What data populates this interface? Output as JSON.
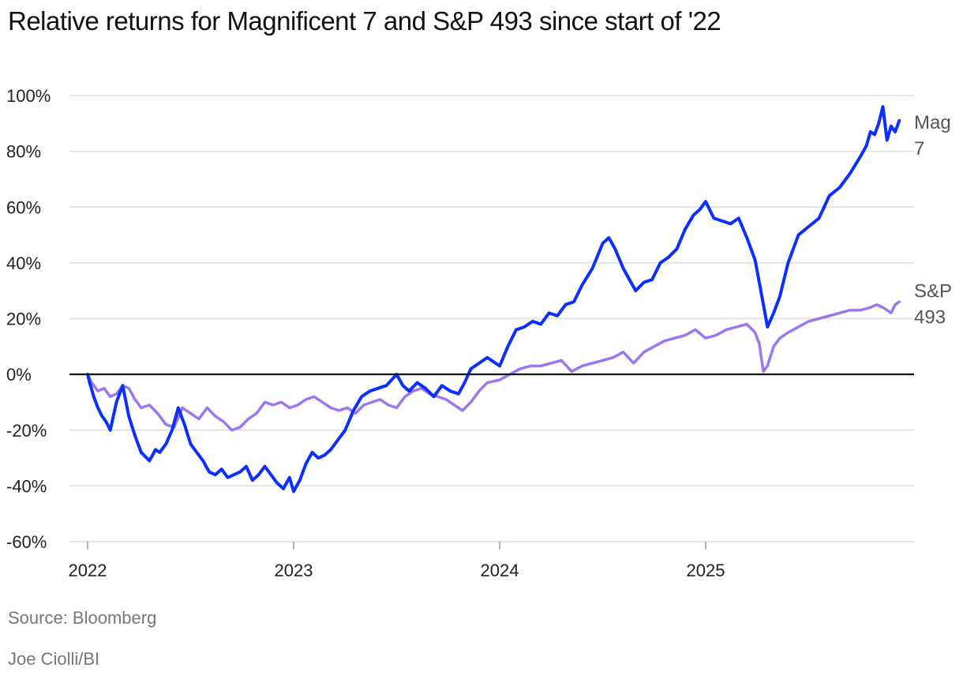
{
  "title": "Relative returns for Magnificent 7 and S&P 493 since start of '22",
  "footer": {
    "source": "Source: Bloomberg",
    "credit": "Joe Ciolli/BI"
  },
  "colors": {
    "mag7": "#0a2fff",
    "sp493": "#9b78f2",
    "grid": "#dedede",
    "zero": "#111111"
  },
  "chart_data": {
    "type": "line",
    "title": "Relative returns for Magnificent 7 and S&P 493 since start of '22",
    "xlabel": "",
    "ylabel": "",
    "xlim": [
      2022.0,
      2026.0
    ],
    "ylim": [
      -60,
      100
    ],
    "yticks": [
      100,
      80,
      60,
      40,
      20,
      0,
      -20,
      -40,
      -60
    ],
    "ytick_labels": [
      "100%",
      "80%",
      "60%",
      "40%",
      "20%",
      "0%",
      "-20%",
      "-40%",
      "-60%"
    ],
    "xticks": [
      2022,
      2023,
      2024,
      2025
    ],
    "xtick_labels": [
      "2022",
      "2023",
      "2024",
      "2025"
    ],
    "series": [
      {
        "name": "Mag 7",
        "label_lines": [
          "Mag",
          "7"
        ],
        "color": "#0a2fff",
        "x": [
          2022.0,
          2022.01,
          2022.03,
          2022.05,
          2022.07,
          2022.09,
          2022.11,
          2022.14,
          2022.17,
          2022.2,
          2022.23,
          2022.26,
          2022.3,
          2022.33,
          2022.35,
          2022.38,
          2022.41,
          2022.44,
          2022.47,
          2022.5,
          2022.53,
          2022.56,
          2022.59,
          2022.62,
          2022.65,
          2022.68,
          2022.71,
          2022.74,
          2022.77,
          2022.8,
          2022.83,
          2022.86,
          2022.89,
          2022.92,
          2022.95,
          2022.98,
          2023.0,
          2023.03,
          2023.06,
          2023.09,
          2023.12,
          2023.15,
          2023.18,
          2023.21,
          2023.25,
          2023.29,
          2023.33,
          2023.37,
          2023.41,
          2023.45,
          2023.5,
          2023.53,
          2023.56,
          2023.6,
          2023.64,
          2023.68,
          2023.72,
          2023.76,
          2023.8,
          2023.83,
          2023.86,
          2023.9,
          2023.94,
          2024.0,
          2024.04,
          2024.08,
          2024.12,
          2024.16,
          2024.2,
          2024.24,
          2024.28,
          2024.32,
          2024.36,
          2024.4,
          2024.45,
          2024.5,
          2024.53,
          2024.56,
          2024.6,
          2024.63,
          2024.66,
          2024.7,
          2024.74,
          2024.78,
          2024.82,
          2024.86,
          2024.9,
          2024.94,
          2024.97,
          2025.0,
          2025.04,
          2025.08,
          2025.12,
          2025.16,
          2025.2,
          2025.24,
          2025.26,
          2025.28,
          2025.3,
          2025.33,
          2025.36,
          2025.4,
          2025.45,
          2025.5,
          2025.55,
          2025.6,
          2025.65,
          2025.7,
          2025.75,
          2025.78,
          2025.8,
          2025.82,
          2025.84,
          2025.86,
          2025.88,
          2025.9,
          2025.92,
          2025.94
        ],
        "values": [
          0,
          -3,
          -8,
          -12,
          -15,
          -17,
          -20,
          -10,
          -4,
          -15,
          -22,
          -28,
          -31,
          -27,
          -28,
          -25,
          -20,
          -12,
          -18,
          -25,
          -28,
          -31,
          -35,
          -36,
          -34,
          -37,
          -36,
          -35,
          -33,
          -38,
          -36,
          -33,
          -36,
          -39,
          -41,
          -37,
          -42,
          -38,
          -32,
          -28,
          -30,
          -29,
          -27,
          -24,
          -20,
          -13,
          -8,
          -6,
          -5,
          -4,
          0,
          -4,
          -6,
          -3,
          -5,
          -8,
          -4,
          -6,
          -7,
          -3,
          2,
          4,
          6,
          3,
          10,
          16,
          17,
          19,
          18,
          22,
          21,
          25,
          26,
          32,
          38,
          47,
          49,
          45,
          38,
          34,
          30,
          33,
          34,
          40,
          42,
          45,
          52,
          57,
          59,
          62,
          56,
          55,
          54,
          56,
          49,
          41,
          33,
          25,
          17,
          22,
          28,
          40,
          50,
          53,
          56,
          64,
          67,
          72,
          78,
          82,
          87,
          86,
          90,
          96,
          84,
          89,
          87,
          91
        ]
      },
      {
        "name": "S&P 493",
        "label_lines": [
          "S&P",
          "493"
        ],
        "color": "#9b78f2",
        "x": [
          2022.0,
          2022.02,
          2022.05,
          2022.08,
          2022.11,
          2022.14,
          2022.17,
          2022.2,
          2022.23,
          2022.26,
          2022.3,
          2022.34,
          2022.38,
          2022.42,
          2022.46,
          2022.5,
          2022.54,
          2022.58,
          2022.62,
          2022.66,
          2022.7,
          2022.74,
          2022.78,
          2022.82,
          2022.86,
          2022.9,
          2022.94,
          2022.98,
          2023.02,
          2023.06,
          2023.1,
          2023.14,
          2023.18,
          2023.22,
          2023.26,
          2023.3,
          2023.34,
          2023.38,
          2023.42,
          2023.46,
          2023.5,
          2023.54,
          2023.58,
          2023.62,
          2023.66,
          2023.7,
          2023.74,
          2023.78,
          2023.82,
          2023.86,
          2023.9,
          2023.94,
          2024.0,
          2024.05,
          2024.1,
          2024.15,
          2024.2,
          2024.25,
          2024.3,
          2024.35,
          2024.4,
          2024.45,
          2024.5,
          2024.55,
          2024.6,
          2024.65,
          2024.7,
          2024.75,
          2024.8,
          2024.85,
          2024.9,
          2024.95,
          2025.0,
          2025.05,
          2025.1,
          2025.15,
          2025.2,
          2025.24,
          2025.26,
          2025.28,
          2025.3,
          2025.33,
          2025.36,
          2025.4,
          2025.45,
          2025.5,
          2025.55,
          2025.6,
          2025.65,
          2025.7,
          2025.75,
          2025.8,
          2025.83,
          2025.86,
          2025.88,
          2025.9,
          2025.92,
          2025.94
        ],
        "values": [
          0,
          -3,
          -6,
          -5,
          -8,
          -7,
          -4,
          -5,
          -9,
          -12,
          -11,
          -14,
          -18,
          -19,
          -12,
          -14,
          -16,
          -12,
          -15,
          -17,
          -20,
          -19,
          -16,
          -14,
          -10,
          -11,
          -10,
          -12,
          -11,
          -9,
          -8,
          -10,
          -12,
          -13,
          -12,
          -14,
          -11,
          -10,
          -9,
          -11,
          -12,
          -8,
          -6,
          -5,
          -7,
          -8,
          -9,
          -11,
          -13,
          -10,
          -6,
          -3,
          -2,
          0,
          2,
          3,
          3,
          4,
          5,
          1,
          3,
          4,
          5,
          6,
          8,
          4,
          8,
          10,
          12,
          13,
          14,
          16,
          13,
          14,
          16,
          17,
          18,
          15,
          11,
          1,
          3,
          10,
          13,
          15,
          17,
          19,
          20,
          21,
          22,
          23,
          23,
          24,
          25,
          24,
          23,
          22,
          25,
          26
        ]
      }
    ]
  }
}
